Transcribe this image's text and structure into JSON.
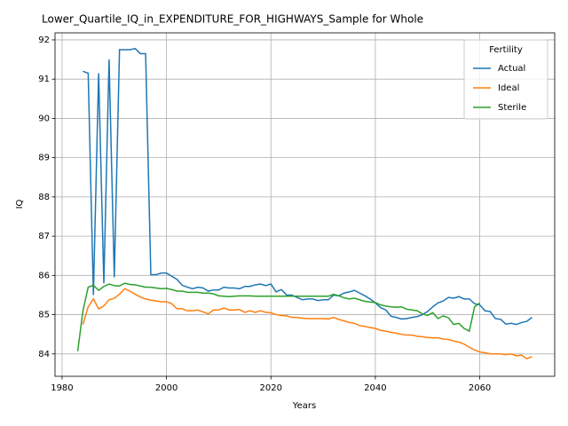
{
  "chart_data": {
    "type": "line",
    "title": "Lower_Quartile_IQ_in_EXPENDITURE_FOR_HIGHWAYS_Sample for Whole",
    "xlabel": "Years",
    "ylabel": "IQ",
    "x": [
      1983,
      1984,
      1985,
      1986,
      1987,
      1988,
      1989,
      1990,
      1991,
      1992,
      1993,
      1994,
      1995,
      1996,
      1997,
      1998,
      1999,
      2000,
      2001,
      2002,
      2003,
      2004,
      2005,
      2006,
      2007,
      2008,
      2009,
      2010,
      2011,
      2012,
      2013,
      2014,
      2015,
      2016,
      2017,
      2018,
      2019,
      2020,
      2021,
      2022,
      2023,
      2024,
      2025,
      2026,
      2027,
      2028,
      2029,
      2030,
      2031,
      2032,
      2033,
      2034,
      2035,
      2036,
      2037,
      2038,
      2039,
      2040,
      2041,
      2042,
      2043,
      2044,
      2045,
      2046,
      2047,
      2048,
      2049,
      2050,
      2051,
      2052,
      2053,
      2054,
      2055,
      2056,
      2057,
      2058,
      2059,
      2060,
      2061,
      2062,
      2063,
      2064,
      2065,
      2066,
      2067,
      2068,
      2069,
      2070
    ],
    "series": [
      {
        "name": "Actual",
        "color": "#1f77b4",
        "values": [
          null,
          91.2,
          91.15,
          85.5,
          91.15,
          85.8,
          91.5,
          85.95,
          91.75,
          91.75,
          91.75,
          91.78,
          91.65,
          91.65,
          86.02,
          86.02,
          86.06,
          86.06,
          85.98,
          85.9,
          85.75,
          85.7,
          85.66,
          85.7,
          85.68,
          85.6,
          85.63,
          85.63,
          85.7,
          85.68,
          85.68,
          85.66,
          85.72,
          85.72,
          85.76,
          85.78,
          85.74,
          85.78,
          85.58,
          85.64,
          85.5,
          85.5,
          85.44,
          85.38,
          85.4,
          85.4,
          85.36,
          85.38,
          85.38,
          85.5,
          85.48,
          85.55,
          85.58,
          85.62,
          85.55,
          85.48,
          85.4,
          85.3,
          85.18,
          85.12,
          84.96,
          84.93,
          84.89,
          84.9,
          84.93,
          84.95,
          85.0,
          85.08,
          85.2,
          85.3,
          85.35,
          85.44,
          85.42,
          85.46,
          85.4,
          85.4,
          85.28,
          85.25,
          85.1,
          85.08,
          84.9,
          84.88,
          84.76,
          84.78,
          84.75,
          84.8,
          84.83,
          84.93
        ]
      },
      {
        "name": "Ideal",
        "color": "#ff7f0e",
        "values": [
          null,
          84.75,
          85.2,
          85.4,
          85.15,
          85.22,
          85.38,
          85.42,
          85.52,
          85.66,
          85.6,
          85.52,
          85.45,
          85.4,
          85.37,
          85.35,
          85.33,
          85.33,
          85.28,
          85.15,
          85.15,
          85.1,
          85.1,
          85.12,
          85.07,
          85.02,
          85.12,
          85.12,
          85.17,
          85.12,
          85.12,
          85.13,
          85.06,
          85.1,
          85.06,
          85.1,
          85.06,
          85.05,
          85.0,
          84.98,
          84.97,
          84.93,
          84.93,
          84.91,
          84.9,
          84.9,
          84.9,
          84.9,
          84.89,
          84.93,
          84.88,
          84.84,
          84.8,
          84.78,
          84.72,
          84.7,
          84.67,
          84.65,
          84.6,
          84.58,
          84.55,
          84.53,
          84.5,
          84.48,
          84.48,
          84.45,
          84.44,
          84.42,
          84.41,
          84.41,
          84.38,
          84.37,
          84.33,
          84.3,
          84.25,
          84.17,
          84.1,
          84.05,
          84.03,
          84.0,
          84.0,
          84.0,
          83.98,
          84.0,
          83.95,
          83.97,
          83.88,
          83.93
        ]
      },
      {
        "name": "Sterile",
        "color": "#2ca02c",
        "values": [
          84.07,
          85.1,
          85.7,
          85.75,
          85.62,
          85.72,
          85.78,
          85.74,
          85.73,
          85.8,
          85.77,
          85.76,
          85.73,
          85.7,
          85.7,
          85.68,
          85.66,
          85.67,
          85.64,
          85.6,
          85.6,
          85.57,
          85.57,
          85.57,
          85.55,
          85.55,
          85.53,
          85.48,
          85.47,
          85.46,
          85.47,
          85.48,
          85.48,
          85.48,
          85.47,
          85.47,
          85.47,
          85.47,
          85.47,
          85.47,
          85.47,
          85.47,
          85.47,
          85.47,
          85.47,
          85.47,
          85.47,
          85.47,
          85.47,
          85.52,
          85.48,
          85.43,
          85.4,
          85.42,
          85.38,
          85.34,
          85.32,
          85.31,
          85.25,
          85.22,
          85.2,
          85.19,
          85.2,
          85.14,
          85.12,
          85.1,
          85.02,
          84.98,
          85.05,
          84.9,
          84.97,
          84.92,
          84.75,
          84.78,
          84.65,
          84.58,
          85.2,
          85.3,
          null,
          null,
          null,
          null,
          null,
          null,
          null,
          null,
          null,
          null
        ]
      }
    ],
    "xlim": [
      1978.65,
      2074.35
    ],
    "ylim": [
      83.43,
      92.18
    ],
    "xticks": [
      1980,
      2000,
      2020,
      2040,
      2060
    ],
    "yticks": [
      84,
      85,
      86,
      87,
      88,
      89,
      90,
      91,
      92
    ],
    "grid": true,
    "legend_title": "Fertility",
    "legend": "upper right"
  }
}
